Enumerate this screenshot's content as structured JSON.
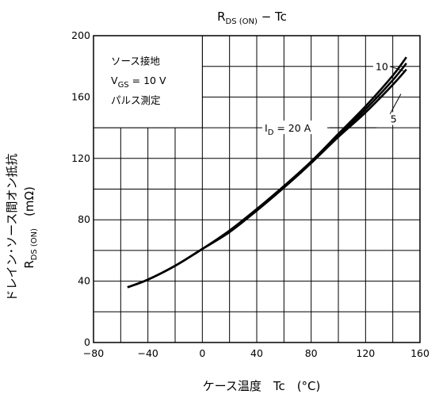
{
  "chart_data": {
    "type": "line",
    "title": {
      "main": "R",
      "sub": "DS (ON)",
      "rest": " − Tc"
    },
    "xlabel": "ケース温度　Tc　(°C)",
    "ylabel": {
      "line1": "ドレイン･ソース間オン抵抗",
      "line2_main": "R",
      "line2_sub": "DS (ON)",
      "line2_unit": "　(mΩ)"
    },
    "xlim": [
      -80,
      160
    ],
    "ylim": [
      0,
      200
    ],
    "x_ticks": [
      "−80",
      "−40",
      "0",
      "40",
      "80",
      "120",
      "160"
    ],
    "y_ticks": [
      "0",
      "40",
      "80",
      "120",
      "160",
      "200"
    ],
    "grid": true,
    "conditions": {
      "line1": "ソース接地",
      "line2_main": "V",
      "line2_sub": "GS",
      "line2_rest": " = 10 V",
      "line3": "パルス測定"
    },
    "series": [
      {
        "name": "5",
        "x": [
          -55,
          -40,
          -20,
          0,
          20,
          40,
          60,
          80,
          100,
          120,
          140,
          150
        ],
        "y": [
          36,
          41,
          50,
          61,
          72,
          86,
          101,
          117,
          134,
          150,
          168,
          178
        ]
      },
      {
        "name": "10",
        "x": [
          -55,
          -40,
          -20,
          0,
          20,
          40,
          60,
          80,
          100,
          120,
          140,
          150
        ],
        "y": [
          36,
          41,
          50,
          61,
          73,
          87,
          102,
          118,
          136,
          154,
          174,
          186
        ]
      },
      {
        "name": "20 A",
        "x": [
          -55,
          -40,
          -20,
          0,
          20,
          40,
          60,
          80,
          100,
          120,
          140,
          150
        ],
        "y": [
          36,
          41,
          50,
          61,
          72,
          86,
          101,
          117,
          135,
          152,
          171,
          182
        ]
      }
    ],
    "series_labels": {
      "id_main": "I",
      "id_sub": "D",
      "id_rest": " = 20 A",
      "ten": "10",
      "five": "5"
    }
  }
}
